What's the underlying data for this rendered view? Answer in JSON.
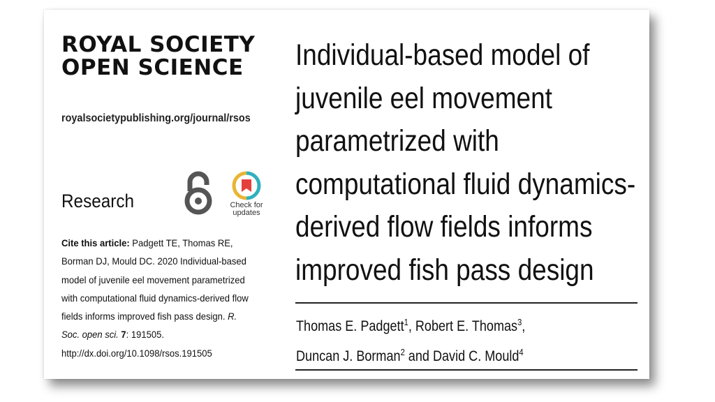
{
  "journal": {
    "logo_line1": "ROYAL SOCIETY",
    "logo_line2": "OPEN SCIENCE",
    "url": "royalsocietypublishing.org/journal/rsos",
    "section": "Research",
    "check_for_updates_line1": "Check for",
    "check_for_updates_line2": "updates"
  },
  "citation": {
    "label": "Cite this article:",
    "text": "Padgett TE, Thomas RE, Borman DJ, Mould DC. 2020 Individual-based model of juvenile eel movement parametrized with computational fluid dynamics-derived flow fields informs improved fish pass design.",
    "journal_abbrev": "R. Soc. open sci.",
    "volume": "7",
    "article_number": ": 191505.",
    "doi": "http://dx.doi.org/10.1098/rsos.191505"
  },
  "article": {
    "title_lines": [
      "Individual-based model of",
      "juvenile eel movement",
      "parametrized with",
      "computational fluid dynamics-",
      "derived flow fields informs",
      "improved fish pass design"
    ],
    "authors": [
      {
        "name": "Thomas E. Padgett",
        "aff": "1",
        "sep": ", "
      },
      {
        "name": "Robert E. Thomas",
        "aff": "3",
        "sep": ","
      },
      {
        "name": "Duncan J. Borman",
        "aff": "2",
        "sep": " and "
      },
      {
        "name": "David C. Mould",
        "aff": "4",
        "sep": ""
      }
    ]
  },
  "colors": {
    "oa_icon": "#555555",
    "cfu_ring_left": "#e8b534",
    "cfu_ring_right": "#2fb1bd",
    "cfu_ribbon": "#e5403c"
  },
  "icons": [
    "open-access-icon",
    "check-for-updates-icon"
  ]
}
